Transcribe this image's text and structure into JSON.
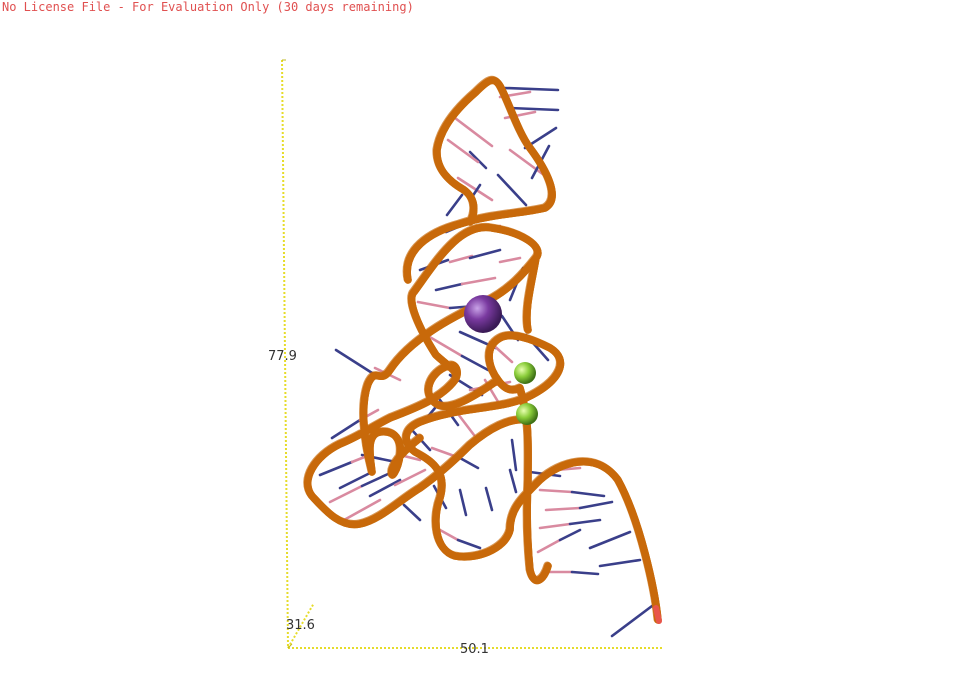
{
  "license_banner": "No License File - For Evaluation Only (30 days remaining)",
  "axes": {
    "y_label": "77.9",
    "z_label": "31.6",
    "x_label": "50.1"
  },
  "colors": {
    "backbone": "#f08c1e",
    "backbone_edge": "#c86a0a",
    "terminus": "#e8554a",
    "base_blue": "#3a3f8a",
    "base_pink": "#d98aa0",
    "ion_purple": "#7a3aa0",
    "ion_green": "#8acd3a",
    "axis": "#e6dc2a",
    "license_text": "#e05050"
  },
  "icons": {
    "ion_large": "sphere",
    "ion_small": "sphere"
  }
}
